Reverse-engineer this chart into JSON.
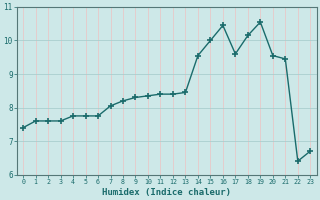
{
  "x": [
    0,
    1,
    2,
    3,
    4,
    5,
    6,
    7,
    8,
    9,
    10,
    11,
    12,
    13,
    14,
    15,
    16,
    17,
    18,
    19,
    20,
    21,
    22,
    23
  ],
  "y": [
    7.4,
    7.6,
    7.6,
    7.6,
    7.75,
    7.75,
    7.75,
    8.05,
    8.2,
    8.3,
    8.35,
    8.4,
    8.4,
    8.45,
    9.55,
    10.0,
    10.45,
    9.6,
    10.15,
    10.55,
    9.55,
    9.45,
    6.4,
    6.7
  ],
  "xlabel": "Humidex (Indice chaleur)",
  "xlim": [
    -0.5,
    23.5
  ],
  "ylim": [
    6,
    11
  ],
  "yticks": [
    6,
    7,
    8,
    9,
    10,
    11
  ],
  "xticks": [
    0,
    1,
    2,
    3,
    4,
    5,
    6,
    7,
    8,
    9,
    10,
    11,
    12,
    13,
    14,
    15,
    16,
    17,
    18,
    19,
    20,
    21,
    22,
    23
  ],
  "line_color": "#1a6b6b",
  "marker": "+",
  "marker_size": 4,
  "bg_color": "#cde8e8",
  "vgrid_color": "#e8c8c8",
  "hgrid_color": "#aacece",
  "font_color": "#1a6b6b",
  "spine_color": "#557777"
}
